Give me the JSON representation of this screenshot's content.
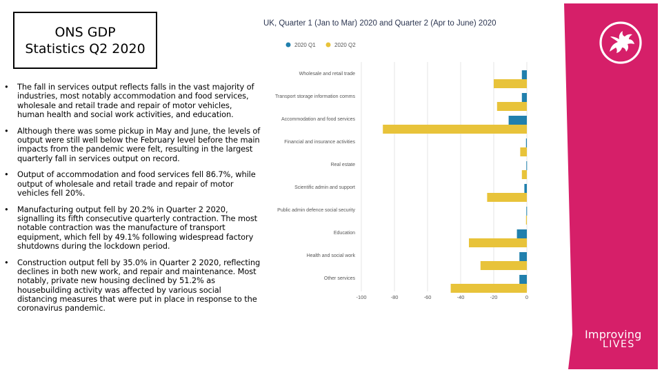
{
  "slide": {
    "title": "ONS GDP Statistics Q2 2020",
    "bullet_marker": "•",
    "bullets": [
      "The fall in services output reflects falls in the vast majority of industries, most notably accommodation and food services, wholesale and retail trade and repair of motor vehicles, human health and social work activities, and education.",
      "Although there was some pickup in May and June, the levels of output were still well below the February level before the main impacts from the pandemic were felt, resulting in the largest quarterly fall in services output on record.",
      "Output of accommodation and food services fell 86.7%, while output of wholesale and retail trade and repair of motor vehicles fell 20%.",
      "Manufacturing output fell by 20.2% in Quarter 2 2020, signalling its fifth consecutive quarterly contraction. The most notable contraction was the manufacture of transport equipment, which fell by 49.1% following widespread factory shutdowns during the lockdown period.",
      "Construction output fell by 35.0% in Quarter 2 2020, reflecting declines in both new work, and repair and maintenance. Most notably, private new housing declined by 51.2% as housebuilding activity was affected by various social distancing measures that were put in place in response to the coronavirus pandemic."
    ]
  },
  "chart_data": {
    "type": "bar",
    "orientation": "horizontal",
    "title": "UK, Quarter 1 (Jan to Mar) 2020 and Quarter 2 (Apr to June) 2020",
    "xlabel": "%",
    "xlim": [
      -100,
      20
    ],
    "xticks": [
      -100,
      -80,
      -60,
      -40,
      -20,
      0,
      20
    ],
    "grid": true,
    "legend_position": "top-left",
    "categories": [
      "Wholesale and retail trade",
      "Transport storage information comms",
      "Accommodation and food services",
      "Financial and insurance activities",
      "Real estate",
      "Scientific admin and support",
      "Public admin defence social security",
      "Education",
      "Health and social work",
      "Other services"
    ],
    "series": [
      {
        "name": "2020 Q1",
        "color": "#2180ad",
        "values": [
          -3,
          -3,
          -11,
          -0.5,
          -0.3,
          -1.5,
          -0.3,
          -6,
          -4.5,
          -4.5
        ]
      },
      {
        "name": "2020 Q2",
        "color": "#e8c33a",
        "values": [
          -20,
          -18,
          -87,
          -4,
          -3,
          -24,
          -0.5,
          -35,
          -28,
          -46
        ]
      }
    ]
  },
  "branding": {
    "color": "#d61f69",
    "logo_icon": "welsh-dragon-icon",
    "line1": "Improving",
    "line2": "LIVES"
  }
}
